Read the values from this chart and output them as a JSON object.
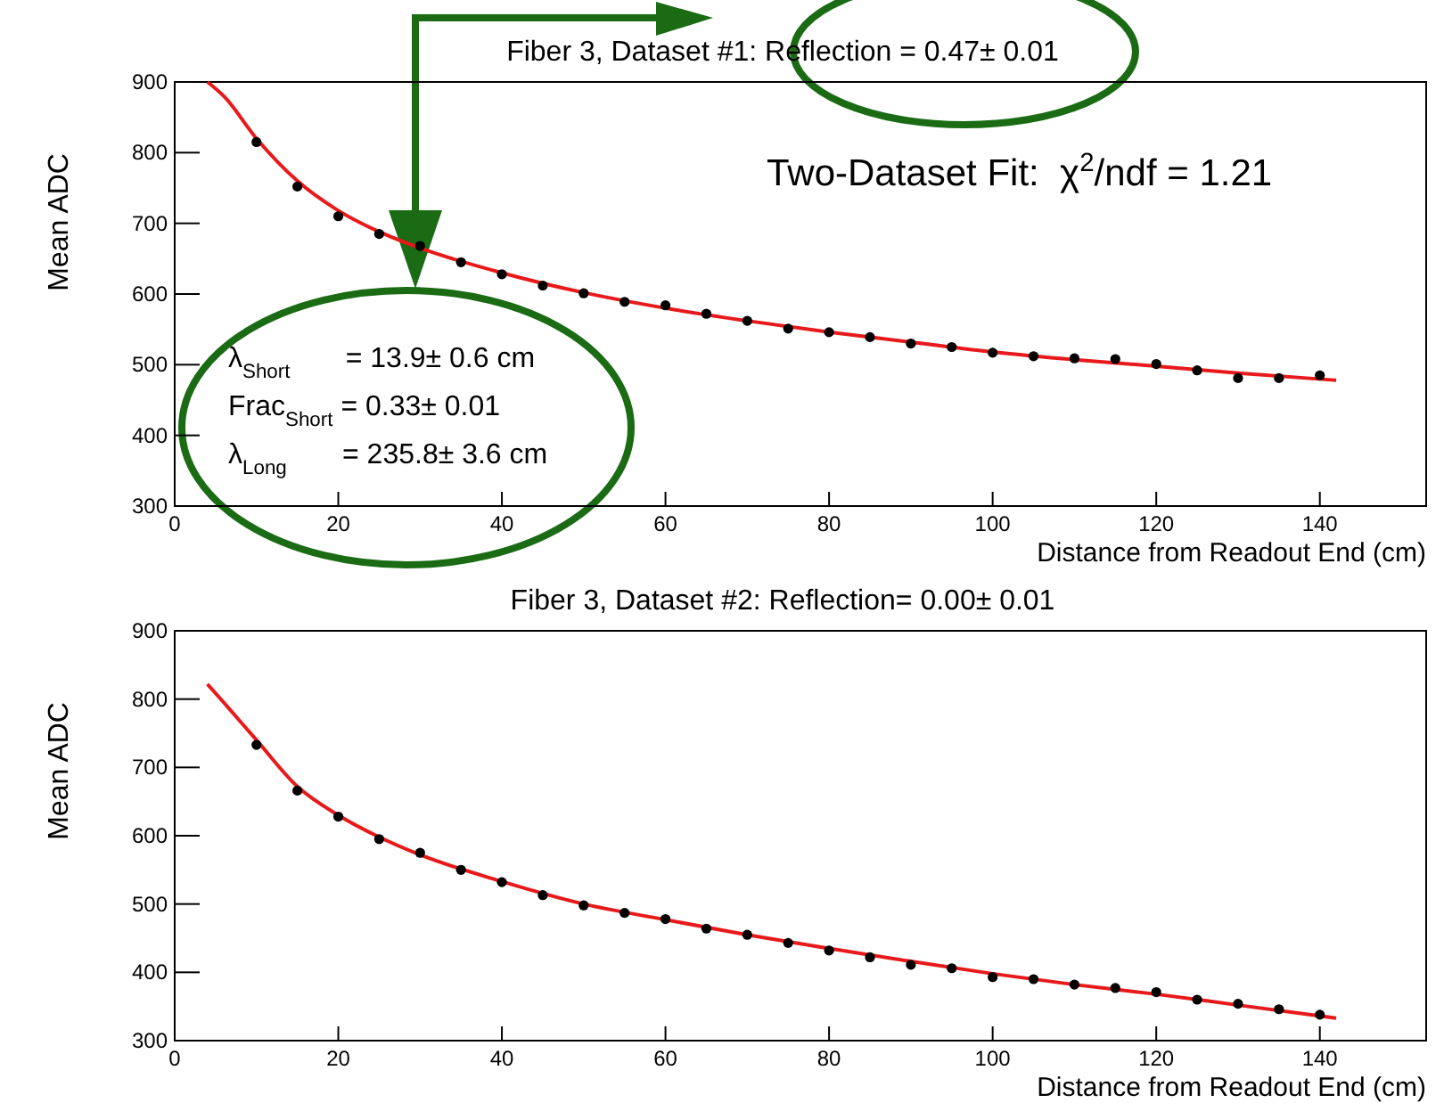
{
  "chart_data": [
    {
      "type": "scatter",
      "title": "Fiber 3, Dataset #1: Reflection = 0.47± 0.01",
      "xlabel": "Distance from Readout End (cm)",
      "ylabel": "Mean ADC",
      "x": [
        10,
        15,
        20,
        25,
        30,
        35,
        40,
        45,
        50,
        55,
        60,
        65,
        70,
        75,
        80,
        85,
        90,
        95,
        100,
        105,
        110,
        115,
        120,
        125,
        130,
        135,
        140
      ],
      "xlim": [
        0,
        153
      ],
      "ylim": [
        300,
        900
      ],
      "xticks": [
        0,
        20,
        40,
        60,
        80,
        100,
        120,
        140
      ],
      "yticks": [
        300,
        400,
        500,
        600,
        700,
        800,
        900
      ],
      "legend": false,
      "grid": false,
      "series": [
        {
          "type": "scatter",
          "marker": "circle",
          "color": "#000000",
          "values": [
            815,
            752,
            710,
            685,
            668,
            645,
            628,
            612,
            601,
            589,
            584,
            572,
            562,
            551,
            546,
            539,
            530,
            525,
            517,
            512,
            509,
            508,
            501,
            492,
            481,
            481,
            485
          ]
        },
        {
          "type": "line",
          "color": "#e8191b",
          "x": [
            4,
            6,
            10,
            15,
            20,
            25,
            30,
            40,
            50,
            60,
            70,
            80,
            90,
            100,
            110,
            120,
            130,
            142
          ],
          "values": [
            900,
            880,
            820,
            760,
            718,
            688,
            665,
            630,
            602,
            580,
            562,
            546,
            532,
            518,
            507,
            498,
            488,
            478
          ]
        }
      ],
      "annotations": [
        "Two-Dataset Fit:  χ$^{2}$/ndf = 1.21",
        "λ$_{Short}$       = 13.9± 0.6 cm",
        "Frac$_{Short}$ = 0.33± 0.01",
        "λ$_{Long}$       = 235.8± 3.6 cm"
      ]
    },
    {
      "type": "scatter",
      "title": "Fiber 3, Dataset #2: Reflection= 0.00± 0.01",
      "xlabel": "Distance from Readout End (cm)",
      "ylabel": "Mean ADC",
      "x": [
        10,
        15,
        20,
        25,
        30,
        35,
        40,
        45,
        50,
        55,
        60,
        65,
        70,
        75,
        80,
        85,
        90,
        95,
        100,
        105,
        110,
        115,
        120,
        125,
        130,
        135,
        140
      ],
      "xlim": [
        0,
        153
      ],
      "ylim": [
        300,
        900
      ],
      "xticks": [
        0,
        20,
        40,
        60,
        80,
        100,
        120,
        140
      ],
      "yticks": [
        300,
        400,
        500,
        600,
        700,
        800,
        900
      ],
      "legend": false,
      "grid": false,
      "series": [
        {
          "type": "scatter",
          "marker": "circle",
          "color": "#000000",
          "values": [
            733,
            666,
            628,
            595,
            575,
            550,
            532,
            513,
            498,
            487,
            478,
            464,
            455,
            443,
            432,
            422,
            411,
            406,
            393,
            390,
            382,
            377,
            371,
            360,
            354,
            346,
            338
          ]
        },
        {
          "type": "line",
          "color": "#e8191b",
          "x": [
            4,
            6,
            10,
            15,
            20,
            25,
            30,
            40,
            50,
            60,
            70,
            80,
            90,
            100,
            110,
            120,
            130,
            142
          ],
          "values": [
            822,
            795,
            740,
            672,
            630,
            598,
            572,
            533,
            500,
            477,
            455,
            435,
            416,
            398,
            382,
            368,
            352,
            333
          ]
        }
      ]
    }
  ]
}
